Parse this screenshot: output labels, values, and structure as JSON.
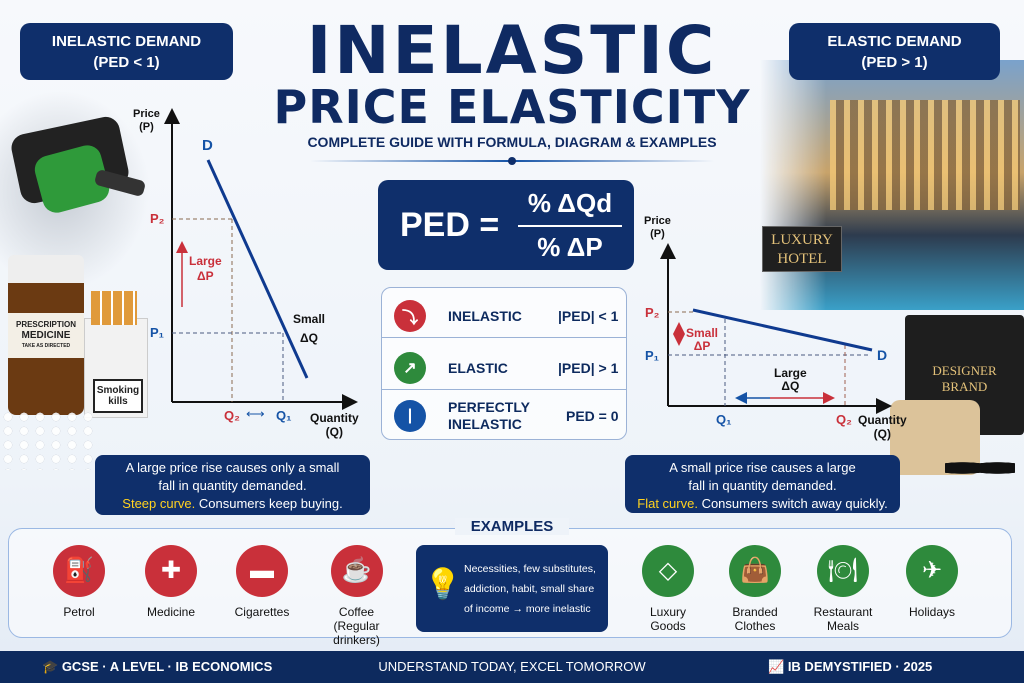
{
  "left_badge": {
    "line1": "INELASTIC DEMAND",
    "line2": "(PED < 1)"
  },
  "right_badge": {
    "line1": "ELASTIC DEMAND",
    "line2": "(PED > 1)"
  },
  "title": {
    "line1": "INELASTIC",
    "line2": "PRICE ELASTICITY",
    "subtitle": "COMPLETE GUIDE WITH FORMULA, DIAGRAM & EXAMPLES"
  },
  "formula": {
    "lhs": "PED =",
    "numerator": "% ΔQd",
    "denominator": "% ΔP"
  },
  "types": [
    {
      "label": "INELASTIC",
      "rule": "|PED| < 1",
      "icon": "curve-down-icon",
      "color": "#c9303a"
    },
    {
      "label": "ELASTIC",
      "rule": "|PED| > 1",
      "icon": "arrow-up-right-icon",
      "color": "#2e8a3c"
    },
    {
      "label": "PERFECTLY INELASTIC",
      "rule": "PED = 0",
      "icon": "vertical-line-icon",
      "color": "#1553a6"
    }
  ],
  "left_chart": {
    "y_label": "Price",
    "y_unit": "(P)",
    "x_label": "Quantity",
    "x_unit": "(Q)",
    "curve": "D",
    "p2": "P₂",
    "p1": "P₁",
    "q2": "Q₂",
    "q1": "Q₁",
    "dp_label1": "Large",
    "dp_label2": "ΔP",
    "dq_label1": "Small",
    "dq_label2": "ΔQ",
    "arrow": "⟷"
  },
  "right_chart": {
    "y_label": "Price",
    "y_unit": "(P)",
    "x_label": "Quantity",
    "x_unit": "(Q)",
    "curve": "D",
    "p2": "P₂",
    "p1": "P₁",
    "q1": "Q₁",
    "q2": "Q₂",
    "dp_label1": "Small",
    "dp_label2": "ΔP",
    "dq_label1": "Large",
    "dq_label2": "ΔQ"
  },
  "left_caption": {
    "line1": "A large price rise causes only a small",
    "line2": "fall in quantity demanded.",
    "highlight": "Steep curve.",
    "rest": " Consumers keep buying."
  },
  "right_caption": {
    "line1": "A small price rise causes a large",
    "line2": "fall in quantity demanded.",
    "highlight": "Flat curve.",
    "rest": " Consumers switch away quickly."
  },
  "images": {
    "medicine_label1": "PRESCRIPTION",
    "medicine_label2": "MEDICINE",
    "medicine_label3": "TAKE AS DIRECTED",
    "cigarette_label": "Smoking kills",
    "hotel_sign1": "LUXURY",
    "hotel_sign2": "HOTEL",
    "bag_label1": "DESIGNER",
    "bag_label2": "BRAND"
  },
  "examples": {
    "heading": "EXAMPLES",
    "inelastic": [
      {
        "label": "Petrol",
        "icon": "fuel-pump-icon"
      },
      {
        "label": "Medicine",
        "icon": "medicine-bottle-icon"
      },
      {
        "label": "Cigarettes",
        "icon": "cigarette-icon"
      },
      {
        "label": "Coffee",
        "sub": "(Regular drinkers)",
        "icon": "coffee-cup-icon"
      }
    ],
    "note": "Necessities, few substitutes, addiction, habit, small share of income → more inelastic",
    "elastic": [
      {
        "label": "Luxury",
        "sub": "Goods",
        "icon": "diamond-icon"
      },
      {
        "label": "Branded",
        "sub": "Clothes",
        "icon": "shopping-bag-icon"
      },
      {
        "label": "Restaurant",
        "sub": "Meals",
        "icon": "plate-cutlery-icon"
      },
      {
        "label": "Holidays",
        "icon": "airplane-icon"
      }
    ]
  },
  "footer": {
    "left": "GCSE · A LEVEL · IB ECONOMICS",
    "center": "UNDERSTAND TODAY, EXCEL TOMORROW",
    "right": "IB DEMYSTIFIED · 2025"
  },
  "colors": {
    "navy": "#0f2f6b",
    "red": "#c9303a",
    "green": "#2e8a3c",
    "blue": "#1553a6",
    "highlight": "#ffd21f"
  }
}
